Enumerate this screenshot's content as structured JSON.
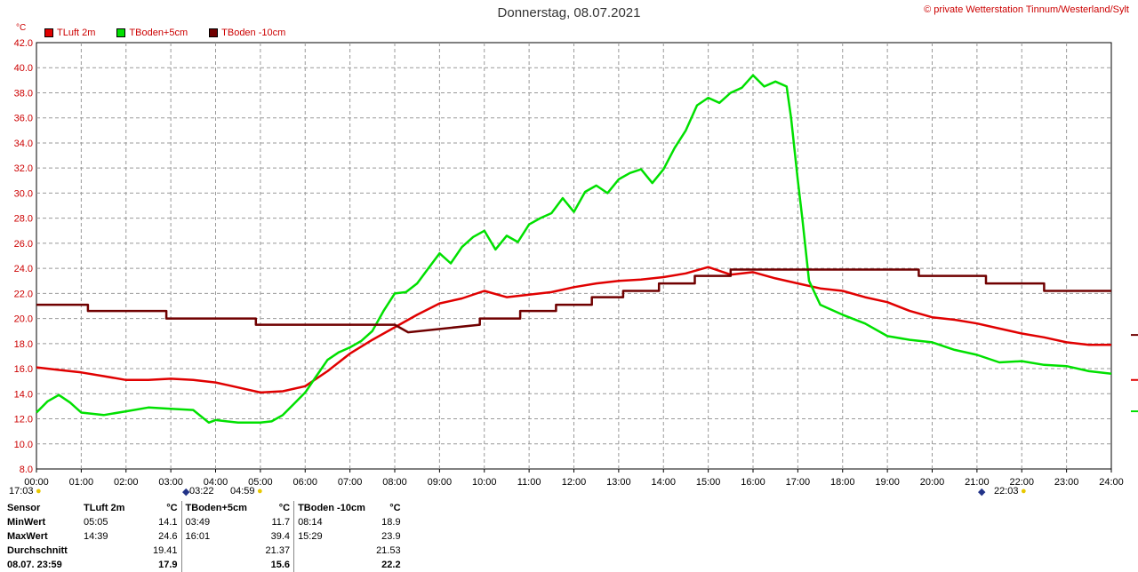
{
  "header": {
    "title": "Donnerstag, 08.07.2021",
    "copyright": "© private Wetterstation Tinnum/Westerland/Sylt",
    "unit": "°C"
  },
  "legend": [
    {
      "label": "TLuft 2m",
      "color": "#e00000"
    },
    {
      "label": "TBoden+5cm",
      "color": "#00e000"
    },
    {
      "label": "TBoden -10cm",
      "color": "#700000"
    }
  ],
  "sun": {
    "left_time": "17:03",
    "moon_time": "03:22",
    "sunrise": "04:59",
    "sunset_moon": "22:03"
  },
  "chart_data": {
    "type": "line",
    "xlabel": "",
    "ylabel": "°C",
    "xlim": [
      0,
      24
    ],
    "ylim": [
      8,
      42
    ],
    "x_ticks": [
      "00:00",
      "01:00",
      "02:00",
      "03:00",
      "04:00",
      "05:00",
      "06:00",
      "07:00",
      "08:00",
      "09:00",
      "10:00",
      "11:00",
      "12:00",
      "13:00",
      "14:00",
      "15:00",
      "16:00",
      "17:00",
      "18:00",
      "19:00",
      "20:00",
      "21:00",
      "22:00",
      "23:00",
      "24:00"
    ],
    "y_ticks": [
      "8.0",
      "10.0",
      "12.0",
      "14.0",
      "16.0",
      "18.0",
      "20.0",
      "22.0",
      "24.0",
      "26.0",
      "28.0",
      "30.0",
      "32.0",
      "34.0",
      "36.0",
      "38.0",
      "40.0",
      "42.0"
    ],
    "grid": true,
    "series": [
      {
        "name": "TLuft 2m",
        "color": "#e00000",
        "x": [
          0,
          0.5,
          1,
          1.5,
          2,
          2.5,
          3,
          3.5,
          4,
          4.5,
          5,
          5.5,
          6,
          6.5,
          7,
          7.5,
          8,
          8.5,
          9,
          9.5,
          10,
          10.5,
          11,
          11.5,
          12,
          12.5,
          13,
          13.5,
          14,
          14.5,
          15,
          15.5,
          16,
          16.5,
          17,
          17.5,
          18,
          18.5,
          19,
          19.5,
          20,
          20.5,
          21,
          21.5,
          22,
          22.5,
          23,
          23.5,
          24
        ],
        "values": [
          16.1,
          15.9,
          15.7,
          15.4,
          15.1,
          15.1,
          15.2,
          15.1,
          14.9,
          14.5,
          14.1,
          14.2,
          14.6,
          15.8,
          17.2,
          18.3,
          19.3,
          20.3,
          21.2,
          21.6,
          22.2,
          21.7,
          21.9,
          22.1,
          22.5,
          22.8,
          23.0,
          23.1,
          23.3,
          23.6,
          24.1,
          23.5,
          23.7,
          23.2,
          22.8,
          22.4,
          22.2,
          21.7,
          21.3,
          20.6,
          20.1,
          19.9,
          19.6,
          19.2,
          18.8,
          18.5,
          18.1,
          17.9,
          17.9
        ]
      },
      {
        "name": "TBoden+5cm",
        "color": "#00e000",
        "x": [
          0,
          0.25,
          0.5,
          0.75,
          1,
          1.5,
          2,
          2.5,
          3,
          3.5,
          3.85,
          4,
          4.5,
          5,
          5.25,
          5.5,
          5.75,
          6,
          6.25,
          6.5,
          6.75,
          7,
          7.25,
          7.5,
          7.75,
          8,
          8.25,
          8.5,
          8.75,
          9,
          9.25,
          9.5,
          9.75,
          10,
          10.25,
          10.5,
          10.75,
          11,
          11.25,
          11.5,
          11.75,
          12,
          12.25,
          12.5,
          12.75,
          13,
          13.25,
          13.5,
          13.75,
          14,
          14.25,
          14.5,
          14.75,
          15,
          15.25,
          15.5,
          15.75,
          16,
          16.25,
          16.5,
          16.75,
          16.85,
          17,
          17.1,
          17.25,
          17.5,
          18,
          18.5,
          19,
          19.5,
          20,
          20.5,
          21,
          21.5,
          22,
          22.5,
          23,
          23.5,
          24
        ],
        "values": [
          12.5,
          13.4,
          13.9,
          13.3,
          12.5,
          12.3,
          12.6,
          12.9,
          12.8,
          12.7,
          11.7,
          11.9,
          11.7,
          11.7,
          11.8,
          12.3,
          13.2,
          14.1,
          15.4,
          16.7,
          17.3,
          17.7,
          18.2,
          19.0,
          20.6,
          22.0,
          22.1,
          22.8,
          24.0,
          25.2,
          24.4,
          25.7,
          26.5,
          27.0,
          25.5,
          26.6,
          26.1,
          27.5,
          28.0,
          28.4,
          29.6,
          28.5,
          30.1,
          30.6,
          30.0,
          31.1,
          31.6,
          31.9,
          30.8,
          31.9,
          33.6,
          35.0,
          37.0,
          37.6,
          37.2,
          38.0,
          38.4,
          39.4,
          38.5,
          38.9,
          38.5,
          36.0,
          31.0,
          28.0,
          23.0,
          21.1,
          20.3,
          19.6,
          18.6,
          18.3,
          18.1,
          17.5,
          17.1,
          16.5,
          16.6,
          16.3,
          16.2,
          15.8,
          15.6
        ]
      },
      {
        "name": "TBoden -10cm",
        "color": "#700000",
        "x": [
          0,
          1.15,
          1.15,
          2.9,
          2.9,
          4.9,
          4.9,
          8.0,
          8.3,
          9.9,
          9.9,
          10.8,
          10.8,
          11.6,
          11.6,
          12.4,
          12.4,
          13.1,
          13.1,
          13.9,
          13.9,
          14.7,
          14.7,
          15.5,
          15.5,
          19.7,
          19.7,
          21.2,
          21.2,
          22.5,
          22.5,
          24
        ],
        "values": [
          21.1,
          21.1,
          20.6,
          20.6,
          20.0,
          20.0,
          19.5,
          19.5,
          18.9,
          19.5,
          20.0,
          20.0,
          20.6,
          20.6,
          21.1,
          21.1,
          21.7,
          21.7,
          22.2,
          22.2,
          22.8,
          22.8,
          23.4,
          23.4,
          23.9,
          23.9,
          23.4,
          23.4,
          22.8,
          22.8,
          22.2,
          22.2
        ]
      }
    ]
  },
  "stats": {
    "headers": [
      "Sensor",
      "TLuft 2m",
      "°C",
      "TBoden+5cm",
      "°C",
      "TBoden -10cm",
      "°C"
    ],
    "rows": [
      {
        "label": "MinWert",
        "c": [
          [
            "05:05",
            "14.1"
          ],
          [
            "03:49",
            "11.7"
          ],
          [
            "08:14",
            "18.9"
          ]
        ]
      },
      {
        "label": "MaxWert",
        "c": [
          [
            "14:39",
            "24.6"
          ],
          [
            "16:01",
            "39.4"
          ],
          [
            "15:29",
            "23.9"
          ]
        ]
      },
      {
        "label": "Durchschnitt",
        "c": [
          [
            "",
            "19.41"
          ],
          [
            "",
            "21.37"
          ],
          [
            "",
            "21.53"
          ]
        ]
      },
      {
        "label": "08.07. 23:59",
        "c": [
          [
            "",
            "17.9"
          ],
          [
            "",
            "15.6"
          ],
          [
            "",
            "22.2"
          ]
        ]
      }
    ]
  }
}
